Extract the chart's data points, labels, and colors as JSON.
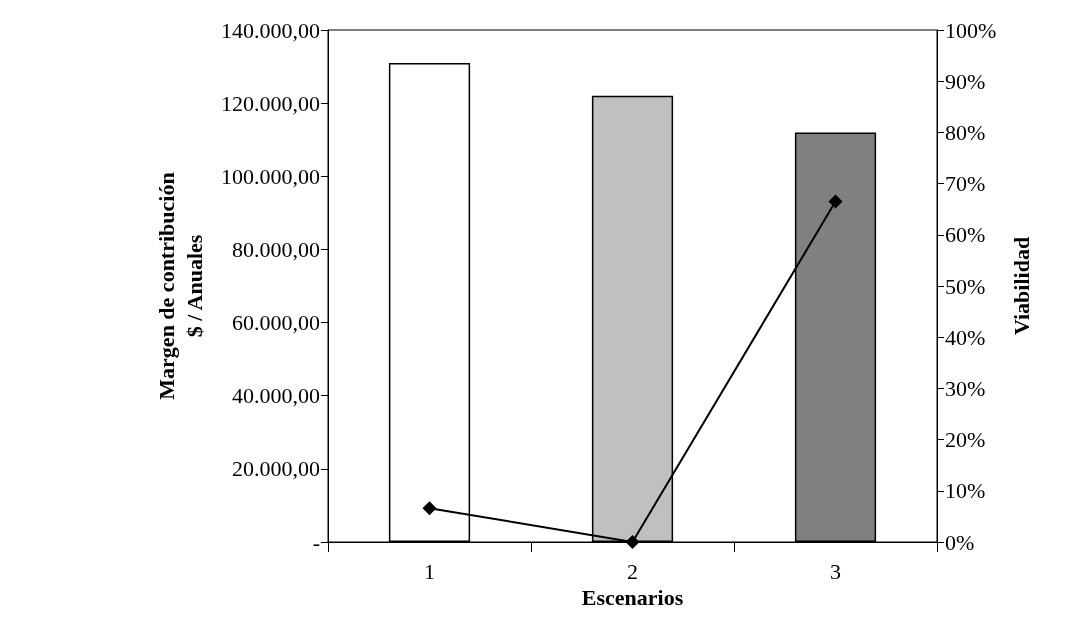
{
  "chart_data": {
    "type": "bar",
    "xlabel": "Escenarios",
    "ylabel": "Margen de contribución\n$ / Anuales",
    "y2label": "Viabilidad",
    "categories": [
      "1",
      "2",
      "3"
    ],
    "series": [
      {
        "colors": [
          "#ffffff",
          "#c0c0c0",
          "#808080"
        ],
        "values": [
          131000,
          122000,
          112000
        ]
      },
      {
        "type": "line",
        "axis": "y2",
        "color": "#000000",
        "marker": "diamond",
        "line_style": "solid",
        "values": [
          0.066,
          0,
          0.665
        ]
      }
    ],
    "ylim": [
      0,
      140000
    ],
    "yticks": [
      {
        "value": 0,
        "label": "-"
      },
      {
        "value": 20000,
        "label": "20.000,00"
      },
      {
        "value": 40000,
        "label": "40.000,00"
      },
      {
        "value": 60000,
        "label": "60.000,00"
      },
      {
        "value": 80000,
        "label": "80.000,00"
      },
      {
        "value": 100000,
        "label": "100.000,00"
      },
      {
        "value": 120000,
        "label": "120.000,00"
      },
      {
        "value": 140000,
        "label": "140.000,00"
      }
    ],
    "y2lim": [
      0,
      1
    ],
    "y2ticks": [
      {
        "value": 0,
        "label": "0%"
      },
      {
        "value": 0.1,
        "label": "10%"
      },
      {
        "value": 0.2,
        "label": "20%"
      },
      {
        "value": 0.3,
        "label": "30%"
      },
      {
        "value": 0.4,
        "label": "40%"
      },
      {
        "value": 0.5,
        "label": "50%"
      },
      {
        "value": 0.6,
        "label": "60%"
      },
      {
        "value": 0.7,
        "label": "70%"
      },
      {
        "value": 0.8,
        "label": "80%"
      },
      {
        "value": 0.9,
        "label": "90%"
      },
      {
        "value": 1,
        "label": "100%"
      }
    ],
    "grid": false
  }
}
